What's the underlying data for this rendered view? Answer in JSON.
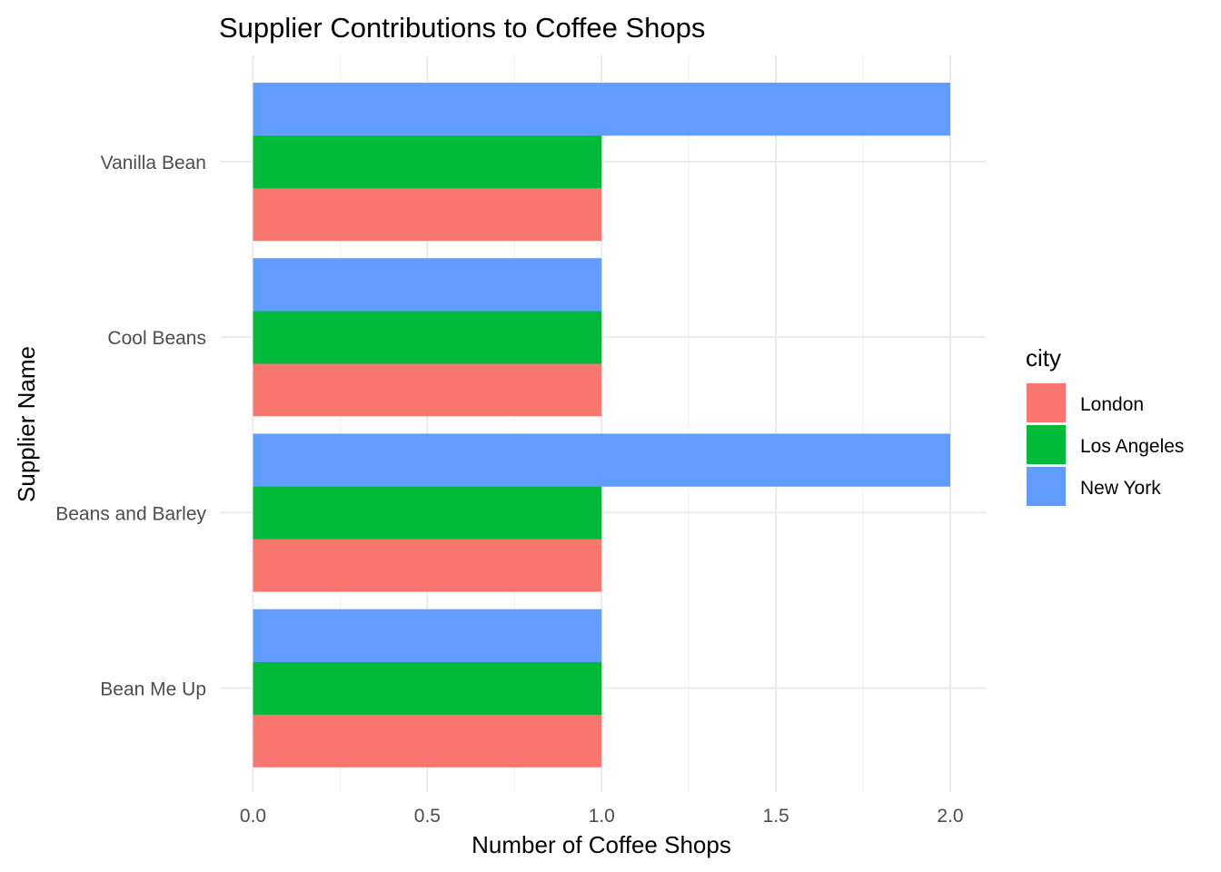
{
  "chart_data": {
    "type": "bar",
    "orientation": "horizontal",
    "title": "Supplier Contributions to Coffee Shops",
    "xlabel": "Number of Coffee Shops",
    "ylabel": "Supplier Name",
    "categories": [
      "Bean Me Up",
      "Beans and Barley",
      "Cool Beans",
      "Vanilla Bean"
    ],
    "series": [
      {
        "name": "London",
        "color": "#F8766D",
        "values": [
          1,
          1,
          1,
          1
        ]
      },
      {
        "name": "Los Angeles",
        "color": "#00BA38",
        "values": [
          1,
          1,
          1,
          1
        ]
      },
      {
        "name": "New York",
        "color": "#619CFF",
        "values": [
          1,
          2,
          1,
          2
        ]
      }
    ],
    "xlim": [
      0,
      2.1
    ],
    "xticks": [
      "0.0",
      "0.5",
      "1.0",
      "1.5",
      "2.0"
    ],
    "grid": true,
    "legend": {
      "title": "city",
      "position": "right"
    }
  }
}
